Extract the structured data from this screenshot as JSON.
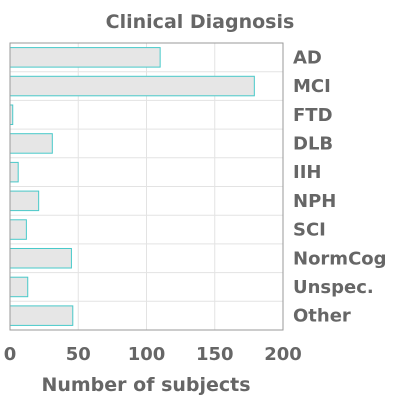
{
  "chart_data": {
    "type": "bar",
    "orientation": "horizontal",
    "title": "Clinical Diagnosis",
    "xlabel": "Number of subjects",
    "ylabel": "",
    "categories": [
      "AD",
      "MCI",
      "FTD",
      "DLB",
      "IIH",
      "NPH",
      "SCI",
      "NormCog",
      "Unspec.",
      "Other"
    ],
    "values": [
      110,
      179,
      2,
      31,
      6,
      21,
      12,
      45,
      13,
      46
    ],
    "xlim": [
      0,
      200
    ],
    "xticks": [
      0,
      50,
      100,
      150,
      200
    ],
    "grid": true,
    "category_axis_side": "right",
    "colors": {
      "bar_fill": "#e6e6e6",
      "bar_edge": "#48c9c9",
      "text": "#666666",
      "grid": "#e3e3e3"
    }
  }
}
